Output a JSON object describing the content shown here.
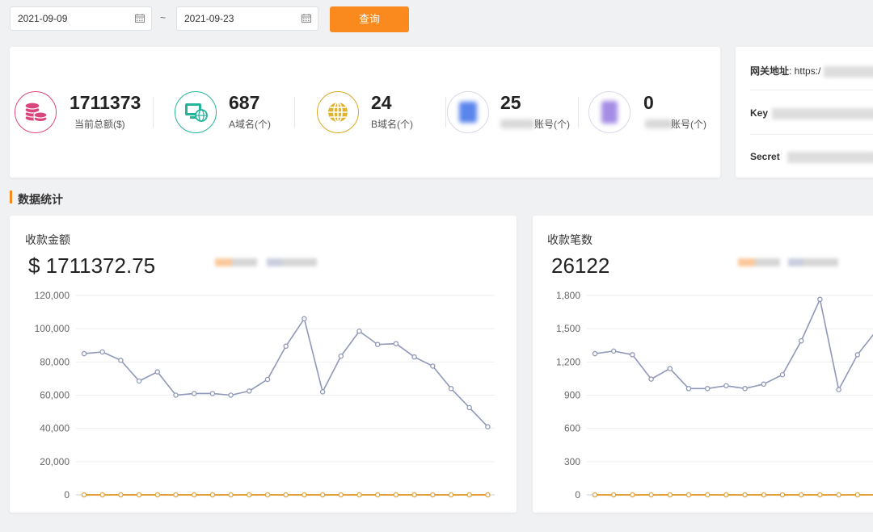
{
  "filter": {
    "start_date": "2021-09-09",
    "end_date": "2021-09-23",
    "separator": "~",
    "query_label": "查询"
  },
  "stats": [
    {
      "value": "1711373",
      "label": "当前总额($)",
      "icon": "coins-icon",
      "color": "#d9467e"
    },
    {
      "value": "687",
      "label": "A域名(个)",
      "icon": "monitor-globe-icon",
      "color": "#25b39a"
    },
    {
      "value": "24",
      "label": "B域名(个)",
      "icon": "globe-icon",
      "color": "#d9a826"
    },
    {
      "value": "25",
      "label": "账号(个)",
      "icon": "blurred-icon",
      "color": "#4e7be8"
    },
    {
      "value": "0",
      "label": "账号(个)",
      "icon": "blurred-icon",
      "color": "#9b7de0"
    }
  ],
  "gateway": {
    "address_label": "网关地址",
    "address_value": ": https:/",
    "key_label": "Key",
    "secret_label": "Secret"
  },
  "section_title": "数据统计",
  "colors": {
    "accent": "#fa8a1d",
    "series_main": "#8f98b9",
    "series_zero": "#e3a23b"
  },
  "charts": {
    "amount": {
      "title": "收款金额",
      "total": "$ 1711372.75",
      "chart_data": {
        "type": "line",
        "y_ticks": [
          "120,000",
          "100,000",
          "80,000",
          "60,000",
          "40,000",
          "20,000",
          "0"
        ],
        "ylim": [
          0,
          120000
        ],
        "series": [
          {
            "values": [
              85000,
              86000,
              81000,
              68500,
              74000,
              60000,
              61000,
              61000,
              60000,
              62500,
              69500,
              89500,
              106000,
              62000,
              83500,
              98500,
              90500,
              91000,
              83000,
              77500,
              64000,
              52500,
              41000
            ]
          },
          {
            "values": [
              0,
              0,
              0,
              0,
              0,
              0,
              0,
              0,
              0,
              0,
              0,
              0,
              0,
              0,
              0,
              0,
              0,
              0,
              0,
              0,
              0,
              0,
              0
            ]
          }
        ]
      }
    },
    "count": {
      "title": "收款笔数",
      "total": "26122",
      "chart_data": {
        "type": "line",
        "y_ticks": [
          "1,800",
          "1,500",
          "1,200",
          "900",
          "600",
          "300",
          "0"
        ],
        "ylim": [
          0,
          1800
        ],
        "series": [
          {
            "values": [
              1275,
              1298,
              1265,
              1045,
              1140,
              960,
              960,
              985,
              960,
              1000,
              1085,
              1390,
              1765,
              950,
              1265,
              1480
            ]
          },
          {
            "values": [
              0,
              0,
              0,
              0,
              0,
              0,
              0,
              0,
              0,
              0,
              0,
              0,
              0,
              0,
              0,
              0
            ]
          }
        ]
      }
    }
  }
}
